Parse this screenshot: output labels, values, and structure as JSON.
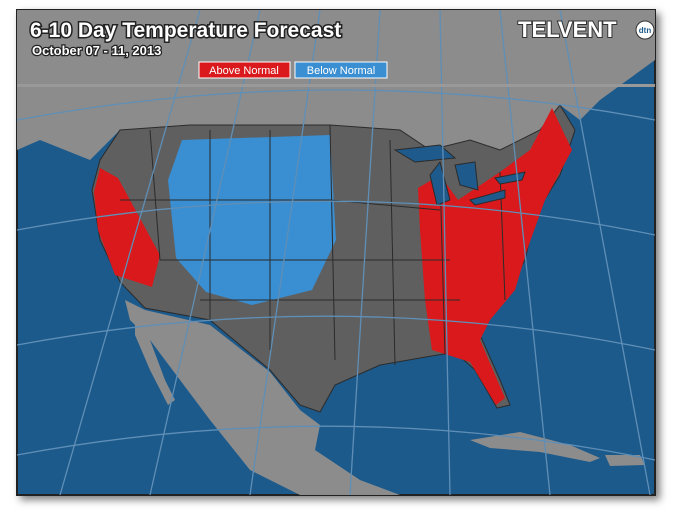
{
  "header": {
    "title": "6-10 Day Temperature Forecast",
    "subtitle": "October 07 - 11, 2013"
  },
  "legend": [
    {
      "label": "Above Normal",
      "color": "#d9191b"
    },
    {
      "label": "Below Normal",
      "color": "#3a8ed2"
    }
  ],
  "logo": {
    "text": "TELVENT",
    "badge": "dtn"
  }
}
